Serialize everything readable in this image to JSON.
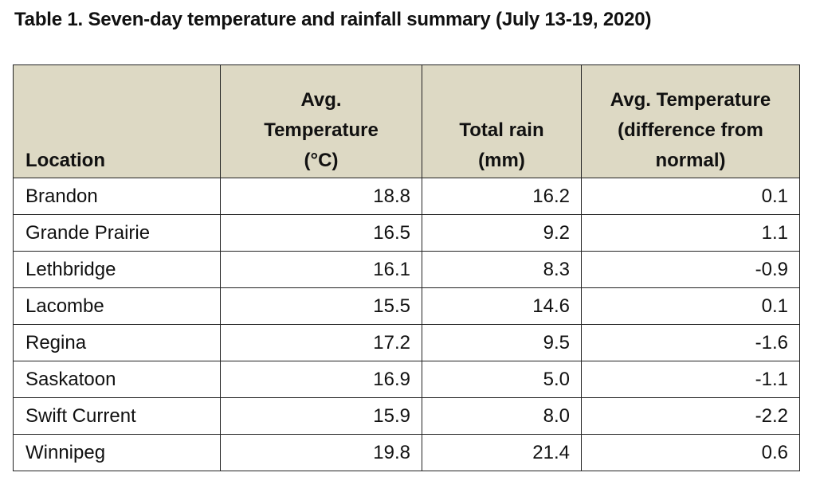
{
  "title": "Table 1. Seven-day temperature and rainfall summary (July 13-19, 2020)",
  "header": {
    "location": "Location",
    "avg_temp": [
      "Avg.",
      "Temperature",
      "(°C)"
    ],
    "total_rain": [
      "Total rain",
      "(mm)"
    ],
    "temp_diff": [
      "Avg. Temperature",
      "(difference from",
      "normal)"
    ]
  },
  "rows": [
    {
      "location": "Brandon",
      "avg_temp": "18.8",
      "total_rain": "16.2",
      "temp_diff": "0.1"
    },
    {
      "location": "Grande Prairie",
      "avg_temp": "16.5",
      "total_rain": "9.2",
      "temp_diff": "1.1"
    },
    {
      "location": "Lethbridge",
      "avg_temp": "16.1",
      "total_rain": "8.3",
      "temp_diff": "-0.9"
    },
    {
      "location": "Lacombe",
      "avg_temp": "15.5",
      "total_rain": "14.6",
      "temp_diff": "0.1"
    },
    {
      "location": "Regina",
      "avg_temp": "17.2",
      "total_rain": "9.5",
      "temp_diff": "-1.6"
    },
    {
      "location": "Saskatoon",
      "avg_temp": "16.9",
      "total_rain": "5.0",
      "temp_diff": "-1.1"
    },
    {
      "location": "Swift Current",
      "avg_temp": "15.9",
      "total_rain": "8.0",
      "temp_diff": "-2.2"
    },
    {
      "location": "Winnipeg",
      "avg_temp": "19.8",
      "total_rain": "21.4",
      "temp_diff": "0.6"
    }
  ],
  "colors": {
    "header_background": "#ddd9c4",
    "border": "#222222",
    "text": "#111111"
  }
}
